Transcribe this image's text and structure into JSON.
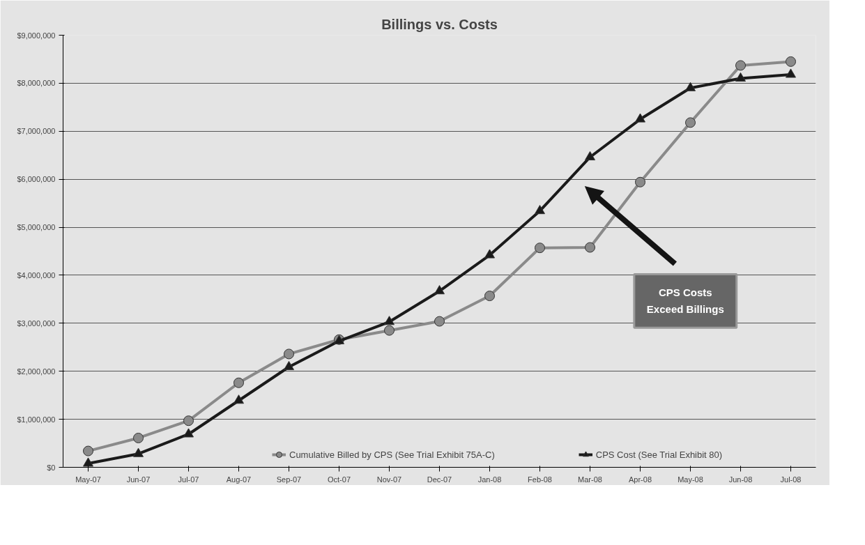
{
  "chart_data": {
    "type": "line",
    "title": "Billings vs. Costs",
    "categories": [
      "May-07",
      "Jun-07",
      "Jul-07",
      "Aug-07",
      "Sep-07",
      "Oct-07",
      "Nov-07",
      "Dec-07",
      "Jan-08",
      "Feb-08",
      "Mar-08",
      "Apr-08",
      "May-08",
      "Jun-08",
      "Jul-08"
    ],
    "series": [
      {
        "name": "Cumulative Billed by CPS (See Trial Exhibit 75A-C)",
        "color": "#8a8a8a",
        "marker": "circle",
        "values": [
          340000,
          610000,
          970000,
          1760000,
          2360000,
          2660000,
          2850000,
          3040000,
          3570000,
          4570000,
          4580000,
          5940000,
          7180000,
          8370000,
          8450000
        ]
      },
      {
        "name": "CPS Cost (See Trial Exhibit 80)",
        "color": "#1a1a1a",
        "marker": "triangle",
        "values": [
          80000,
          280000,
          690000,
          1390000,
          2090000,
          2630000,
          3030000,
          3670000,
          4420000,
          5340000,
          6460000,
          7250000,
          7900000,
          8100000,
          8180000
        ]
      }
    ],
    "ylim": [
      0,
      9000000
    ],
    "yticks": [
      {
        "value": 0,
        "label": "$0"
      },
      {
        "value": 1000000,
        "label": "$1,000,000"
      },
      {
        "value": 2000000,
        "label": "$2,000,000"
      },
      {
        "value": 3000000,
        "label": "$3,000,000"
      },
      {
        "value": 4000000,
        "label": "$4,000,000"
      },
      {
        "value": 5000000,
        "label": "$5,000,000"
      },
      {
        "value": 6000000,
        "label": "$6,000,000"
      },
      {
        "value": 7000000,
        "label": "$7,000,000"
      },
      {
        "value": 8000000,
        "label": "$8,000,000"
      },
      {
        "value": 9000000,
        "label": "$9,000,000"
      }
    ],
    "grid": "y",
    "legend": "bottom",
    "line_style": "solid",
    "annotations": [
      "CPS Costs\nExceed Billings"
    ]
  }
}
